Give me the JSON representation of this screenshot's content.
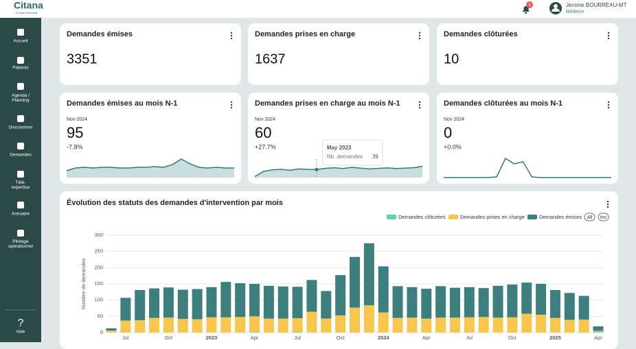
{
  "header": {
    "logo": "Citana",
    "logo_subtitle": "Groupe Antemeta",
    "notifications": 3,
    "user_name": "Jerome BOURREAU-MT",
    "user_role": "Médecin"
  },
  "sidebar": {
    "items": [
      "Accueil",
      "Patients",
      "Agenda / Planning",
      "Discussions",
      "Demandes",
      "Télé-expertise",
      "Annuaire",
      "Pilotage opérationnel"
    ],
    "help": "Aide"
  },
  "kpis": [
    {
      "title": "Demandes émises",
      "value": 3351
    },
    {
      "title": "Demandes prises en charge",
      "value": 1637
    },
    {
      "title": "Demandes clôturées",
      "value": 10
    }
  ],
  "kpis_month": [
    {
      "title": "Demandes émises au mois N-1",
      "period": "Nov 2024",
      "value": 95,
      "change": "-7.8%",
      "sparkline": {
        "type": "area",
        "values": [
          10,
          14,
          15,
          14,
          15,
          15,
          14,
          14,
          15,
          15,
          16,
          15,
          19,
          27,
          20,
          15,
          14,
          15,
          14,
          14
        ],
        "ylim": [
          0,
          30
        ],
        "color": "#2f7a7a"
      }
    },
    {
      "title": "Demandes prises en charge au mois N-1",
      "period": "Nov 2024",
      "value": 60,
      "change": "+27.7%",
      "sparkline": {
        "type": "area",
        "values": [
          5,
          30,
          38,
          40,
          36,
          42,
          40,
          39,
          45,
          48,
          44,
          50,
          46,
          42,
          45,
          47,
          44,
          46,
          48,
          55
        ],
        "ylim": [
          0,
          100
        ],
        "color": "#2f7a7a"
      },
      "tooltip": {
        "title": "May 2023",
        "label": "Nb. demandes",
        "index": 7
      }
    },
    {
      "title": "Demandes clôturées au mois N-1",
      "period": "Nov 2024",
      "value": 0,
      "change": "+0.0%",
      "sparkline": {
        "type": "line",
        "values": [
          0,
          0,
          0,
          0,
          0,
          0,
          1,
          28,
          20,
          23,
          1,
          0,
          0,
          0,
          0,
          0,
          0,
          0,
          0,
          0
        ],
        "ylim": [
          0,
          30
        ],
        "color": "#2f7a7a"
      }
    }
  ],
  "chart_data": {
    "type": "bar",
    "stacked": true,
    "title": "Évolution des statuts des demandes d'intervention par mois",
    "y_label": "Nombre de demandes",
    "categories": [
      null,
      "Jul",
      null,
      null,
      "Oct",
      null,
      null,
      "2023",
      null,
      null,
      "Apr",
      null,
      null,
      "Jul",
      null,
      null,
      "Oct",
      null,
      null,
      "2024",
      null,
      null,
      "Apr",
      null,
      null,
      "Jul",
      null,
      null,
      "Oct",
      null,
      null,
      "2025",
      null,
      null,
      "Apr"
    ],
    "series": [
      {
        "name": "Demandes clôturées",
        "color": "#5fd3a6",
        "values": [
          0,
          0,
          0,
          0,
          0,
          0,
          0,
          0,
          0,
          0,
          2,
          0,
          0,
          2,
          0,
          0,
          0,
          0,
          0,
          0,
          0,
          0,
          0,
          0,
          0,
          0,
          0,
          0,
          0,
          0,
          0,
          0,
          0,
          0,
          2
        ]
      },
      {
        "name": "Demandes prises en charge",
        "color": "#f8c64c",
        "values": [
          6,
          37,
          38,
          45,
          46,
          42,
          41,
          47,
          47,
          48,
          48,
          43,
          43,
          42,
          64,
          43,
          53,
          77,
          84,
          62,
          45,
          46,
          43,
          46,
          46,
          47,
          48,
          46,
          47,
          58,
          55,
          45,
          39,
          40,
          3
        ]
      },
      {
        "name": "Demandes émises",
        "color": "#3d7f7e",
        "values": [
          7,
          70,
          93,
          91,
          93,
          90,
          93,
          93,
          109,
          104,
          100,
          101,
          99,
          97,
          98,
          85,
          124,
          156,
          191,
          142,
          98,
          94,
          92,
          97,
          92,
          93,
          89,
          98,
          101,
          96,
          95,
          86,
          83,
          73,
          14
        ]
      }
    ],
    "ylim": [
      0,
      300
    ],
    "yticks": [
      0,
      50,
      100,
      150,
      200,
      250,
      300
    ],
    "grid": true,
    "legend_buttons": [
      "All",
      "Inv"
    ]
  }
}
